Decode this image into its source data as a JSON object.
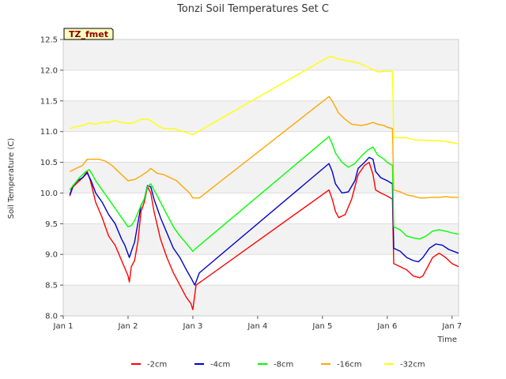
{
  "chart_data": {
    "type": "line",
    "title": "Tonzi Soil Temperatures Set C",
    "xlabel": "Time",
    "ylabel": "Soil Temperature (C)",
    "xlim": [
      0,
      6.1
    ],
    "ylim": [
      8.0,
      12.5
    ],
    "x_ticks": [
      {
        "value": 0,
        "label": "Jan 1"
      },
      {
        "value": 1,
        "label": "Jan 2"
      },
      {
        "value": 2,
        "label": "Jan 3"
      },
      {
        "value": 3,
        "label": "Jan 4"
      },
      {
        "value": 4,
        "label": "Jan 5"
      },
      {
        "value": 5,
        "label": "Jan 6"
      },
      {
        "value": 6,
        "label": "Jan 7"
      }
    ],
    "y_ticks": [
      {
        "value": 8.0,
        "label": "8.0"
      },
      {
        "value": 8.5,
        "label": "8.5"
      },
      {
        "value": 9.0,
        "label": "9.0"
      },
      {
        "value": 9.5,
        "label": "9.5"
      },
      {
        "value": 10.0,
        "label": "10.0"
      },
      {
        "value": 10.5,
        "label": "10.5"
      },
      {
        "value": 11.0,
        "label": "11.0"
      },
      {
        "value": 11.5,
        "label": "11.5"
      },
      {
        "value": 12.0,
        "label": "12.0"
      },
      {
        "value": 12.5,
        "label": "12.5"
      }
    ],
    "badge": "TZ_fmet",
    "legend_position": "bottom",
    "series": [
      {
        "name": "-2cm",
        "color": "#ff0000",
        "points": [
          [
            0.1,
            9.95
          ],
          [
            0.15,
            10.1
          ],
          [
            0.2,
            10.15
          ],
          [
            0.3,
            10.25
          ],
          [
            0.37,
            10.35
          ],
          [
            0.42,
            10.2
          ],
          [
            0.5,
            9.85
          ],
          [
            0.6,
            9.6
          ],
          [
            0.7,
            9.3
          ],
          [
            0.8,
            9.15
          ],
          [
            0.9,
            8.9
          ],
          [
            1.0,
            8.65
          ],
          [
            1.02,
            8.55
          ],
          [
            1.05,
            8.8
          ],
          [
            1.1,
            8.9
          ],
          [
            1.15,
            9.2
          ],
          [
            1.2,
            9.7
          ],
          [
            1.25,
            9.85
          ],
          [
            1.3,
            10.1
          ],
          [
            1.35,
            10.0
          ],
          [
            1.4,
            9.7
          ],
          [
            1.5,
            9.25
          ],
          [
            1.6,
            8.95
          ],
          [
            1.7,
            8.7
          ],
          [
            1.8,
            8.5
          ],
          [
            1.9,
            8.3
          ],
          [
            1.97,
            8.2
          ],
          [
            2.0,
            8.1
          ],
          [
            2.05,
            8.5
          ],
          [
            4.1,
            10.05
          ],
          [
            4.15,
            9.9
          ],
          [
            4.2,
            9.7
          ],
          [
            4.25,
            9.6
          ],
          [
            4.35,
            9.65
          ],
          [
            4.45,
            9.9
          ],
          [
            4.55,
            10.3
          ],
          [
            4.65,
            10.45
          ],
          [
            4.72,
            10.5
          ],
          [
            4.78,
            10.3
          ],
          [
            4.82,
            10.05
          ],
          [
            4.9,
            10.0
          ],
          [
            5.0,
            9.95
          ],
          [
            5.08,
            9.9
          ],
          [
            5.1,
            8.85
          ],
          [
            5.2,
            8.8
          ],
          [
            5.3,
            8.75
          ],
          [
            5.4,
            8.65
          ],
          [
            5.5,
            8.62
          ],
          [
            5.55,
            8.65
          ],
          [
            5.6,
            8.75
          ],
          [
            5.7,
            8.95
          ],
          [
            5.8,
            9.02
          ],
          [
            5.9,
            8.95
          ],
          [
            6.0,
            8.85
          ],
          [
            6.1,
            8.8
          ]
        ]
      },
      {
        "name": "-4cm",
        "color": "#0000cc",
        "points": [
          [
            0.1,
            9.97
          ],
          [
            0.15,
            10.12
          ],
          [
            0.22,
            10.2
          ],
          [
            0.3,
            10.25
          ],
          [
            0.37,
            10.33
          ],
          [
            0.43,
            10.2
          ],
          [
            0.5,
            10.0
          ],
          [
            0.6,
            9.85
          ],
          [
            0.7,
            9.65
          ],
          [
            0.8,
            9.5
          ],
          [
            0.9,
            9.25
          ],
          [
            0.95,
            9.15
          ],
          [
            1.02,
            8.95
          ],
          [
            1.05,
            9.05
          ],
          [
            1.1,
            9.2
          ],
          [
            1.15,
            9.5
          ],
          [
            1.2,
            9.8
          ],
          [
            1.25,
            9.9
          ],
          [
            1.3,
            10.12
          ],
          [
            1.35,
            10.1
          ],
          [
            1.4,
            9.9
          ],
          [
            1.5,
            9.6
          ],
          [
            1.6,
            9.35
          ],
          [
            1.7,
            9.1
          ],
          [
            1.8,
            8.95
          ],
          [
            1.9,
            8.75
          ],
          [
            1.98,
            8.6
          ],
          [
            2.03,
            8.5
          ],
          [
            2.1,
            8.7
          ],
          [
            4.1,
            10.48
          ],
          [
            4.15,
            10.35
          ],
          [
            4.2,
            10.15
          ],
          [
            4.3,
            10.0
          ],
          [
            4.4,
            10.02
          ],
          [
            4.5,
            10.2
          ],
          [
            4.55,
            10.4
          ],
          [
            4.65,
            10.5
          ],
          [
            4.72,
            10.58
          ],
          [
            4.78,
            10.55
          ],
          [
            4.82,
            10.35
          ],
          [
            4.9,
            10.25
          ],
          [
            5.0,
            10.2
          ],
          [
            5.08,
            10.15
          ],
          [
            5.1,
            9.1
          ],
          [
            5.2,
            9.05
          ],
          [
            5.3,
            8.95
          ],
          [
            5.4,
            8.9
          ],
          [
            5.48,
            8.88
          ],
          [
            5.55,
            8.95
          ],
          [
            5.65,
            9.1
          ],
          [
            5.75,
            9.17
          ],
          [
            5.85,
            9.15
          ],
          [
            5.95,
            9.08
          ],
          [
            6.1,
            9.02
          ]
        ]
      },
      {
        "name": "-8cm",
        "color": "#00ff00",
        "points": [
          [
            0.1,
            10.05
          ],
          [
            0.15,
            10.12
          ],
          [
            0.25,
            10.25
          ],
          [
            0.35,
            10.35
          ],
          [
            0.4,
            10.38
          ],
          [
            0.45,
            10.3
          ],
          [
            0.5,
            10.2
          ],
          [
            0.6,
            10.05
          ],
          [
            0.7,
            9.9
          ],
          [
            0.8,
            9.75
          ],
          [
            0.9,
            9.6
          ],
          [
            1.0,
            9.45
          ],
          [
            1.05,
            9.47
          ],
          [
            1.1,
            9.55
          ],
          [
            1.2,
            9.8
          ],
          [
            1.25,
            9.9
          ],
          [
            1.3,
            10.1
          ],
          [
            1.35,
            10.15
          ],
          [
            1.4,
            10.05
          ],
          [
            1.5,
            9.85
          ],
          [
            1.6,
            9.65
          ],
          [
            1.7,
            9.45
          ],
          [
            1.8,
            9.3
          ],
          [
            1.9,
            9.18
          ],
          [
            2.0,
            9.05
          ],
          [
            2.05,
            9.1
          ],
          [
            4.1,
            10.92
          ],
          [
            4.15,
            10.8
          ],
          [
            4.2,
            10.65
          ],
          [
            4.3,
            10.5
          ],
          [
            4.4,
            10.42
          ],
          [
            4.5,
            10.48
          ],
          [
            4.6,
            10.6
          ],
          [
            4.7,
            10.7
          ],
          [
            4.78,
            10.75
          ],
          [
            4.85,
            10.62
          ],
          [
            4.95,
            10.55
          ],
          [
            5.0,
            10.5
          ],
          [
            5.08,
            10.45
          ],
          [
            5.1,
            9.45
          ],
          [
            5.2,
            9.4
          ],
          [
            5.3,
            9.3
          ],
          [
            5.4,
            9.27
          ],
          [
            5.5,
            9.25
          ],
          [
            5.6,
            9.3
          ],
          [
            5.7,
            9.38
          ],
          [
            5.8,
            9.4
          ],
          [
            5.9,
            9.38
          ],
          [
            6.0,
            9.35
          ],
          [
            6.1,
            9.33
          ]
        ]
      },
      {
        "name": "-16cm",
        "color": "#ffa500",
        "points": [
          [
            0.1,
            10.35
          ],
          [
            0.2,
            10.4
          ],
          [
            0.3,
            10.45
          ],
          [
            0.37,
            10.55
          ],
          [
            0.45,
            10.55
          ],
          [
            0.55,
            10.55
          ],
          [
            0.65,
            10.52
          ],
          [
            0.75,
            10.45
          ],
          [
            0.85,
            10.35
          ],
          [
            0.95,
            10.25
          ],
          [
            1.0,
            10.2
          ],
          [
            1.1,
            10.22
          ],
          [
            1.2,
            10.28
          ],
          [
            1.3,
            10.35
          ],
          [
            1.35,
            10.4
          ],
          [
            1.45,
            10.32
          ],
          [
            1.55,
            10.3
          ],
          [
            1.65,
            10.25
          ],
          [
            1.75,
            10.2
          ],
          [
            1.85,
            10.1
          ],
          [
            1.95,
            10.0
          ],
          [
            2.0,
            9.92
          ],
          [
            2.1,
            9.92
          ],
          [
            4.1,
            11.57
          ],
          [
            4.15,
            11.5
          ],
          [
            4.25,
            11.3
          ],
          [
            4.35,
            11.2
          ],
          [
            4.45,
            11.12
          ],
          [
            4.6,
            11.1
          ],
          [
            4.7,
            11.12
          ],
          [
            4.78,
            11.15
          ],
          [
            4.85,
            11.12
          ],
          [
            4.95,
            11.1
          ],
          [
            5.0,
            11.07
          ],
          [
            5.08,
            11.05
          ],
          [
            5.1,
            10.05
          ],
          [
            5.2,
            10.02
          ],
          [
            5.3,
            9.97
          ],
          [
            5.4,
            9.95
          ],
          [
            5.5,
            9.92
          ],
          [
            5.6,
            9.92
          ],
          [
            5.7,
            9.93
          ],
          [
            5.8,
            9.93
          ],
          [
            5.9,
            9.94
          ],
          [
            6.0,
            9.93
          ],
          [
            6.1,
            9.93
          ]
        ]
      },
      {
        "name": "-32cm",
        "color": "#ffff00",
        "points": [
          [
            0.1,
            11.05
          ],
          [
            0.2,
            11.08
          ],
          [
            0.3,
            11.1
          ],
          [
            0.4,
            11.14
          ],
          [
            0.5,
            11.12
          ],
          [
            0.6,
            11.15
          ],
          [
            0.7,
            11.15
          ],
          [
            0.8,
            11.18
          ],
          [
            0.9,
            11.15
          ],
          [
            1.0,
            11.13
          ],
          [
            1.1,
            11.15
          ],
          [
            1.2,
            11.2
          ],
          [
            1.3,
            11.2
          ],
          [
            1.35,
            11.18
          ],
          [
            1.45,
            11.1
          ],
          [
            1.55,
            11.05
          ],
          [
            1.7,
            11.05
          ],
          [
            1.85,
            11.0
          ],
          [
            1.95,
            10.97
          ],
          [
            2.0,
            10.95
          ],
          [
            2.05,
            10.98
          ],
          [
            4.1,
            12.22
          ],
          [
            4.15,
            12.22
          ],
          [
            4.25,
            12.18
          ],
          [
            4.4,
            12.15
          ],
          [
            4.55,
            12.12
          ],
          [
            4.7,
            12.05
          ],
          [
            4.8,
            12.0
          ],
          [
            4.85,
            11.97
          ],
          [
            4.95,
            11.98
          ],
          [
            5.08,
            11.98
          ],
          [
            5.1,
            10.9
          ],
          [
            5.2,
            10.9
          ],
          [
            5.3,
            10.9
          ],
          [
            5.4,
            10.87
          ],
          [
            5.5,
            10.86
          ],
          [
            5.6,
            10.86
          ],
          [
            5.7,
            10.85
          ],
          [
            5.8,
            10.85
          ],
          [
            5.9,
            10.84
          ],
          [
            6.0,
            10.82
          ],
          [
            6.1,
            10.8
          ]
        ]
      }
    ]
  }
}
